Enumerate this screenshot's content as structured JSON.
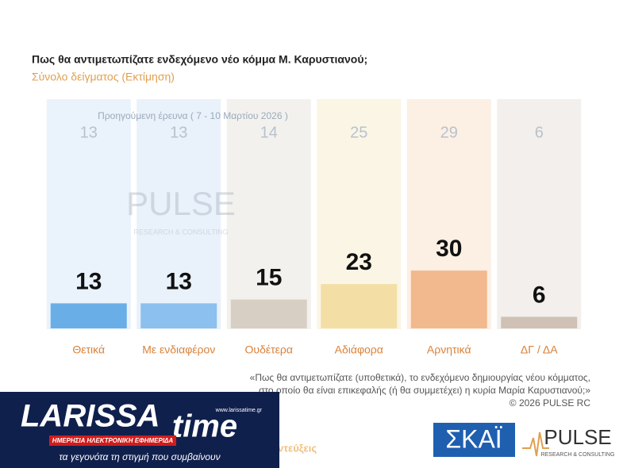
{
  "chart_data": {
    "type": "bar",
    "title": "Πως θα αντιμετωπίζατε ενδεχόμενο νέο κόμμα Μ. Καρυστιανού;",
    "subtitle": "Σύνολο δείγματος  (Εκτίμηση)",
    "categories": [
      "Θετικά",
      "Με ενδιαφέρον",
      "Ουδέτερα",
      "Αδιάφορα",
      "Αρνητικά",
      "ΔΓ / ΔΑ"
    ],
    "values": [
      13,
      13,
      15,
      23,
      30,
      6
    ],
    "colors": [
      "#6aaee8",
      "#8cc0ee",
      "#d8cfc4",
      "#f3dfa6",
      "#f2b98e",
      "#cfc2b4"
    ],
    "column_colors": [
      "#eaf2fb",
      "#e9f1fa",
      "#f3f1ee",
      "#fbf5e6",
      "#fcefe4",
      "#f2efec"
    ],
    "previous_label": "Προηγούμενη έρευνα ( 7 - 10 Μαρτίου 2026 )",
    "previous_values": [
      13,
      13,
      14,
      25,
      29,
      6
    ],
    "footnote": [
      "«Πως θα αντιμετωπίζατε (υποθετικά), το ενδεχόμενο δημιουργίας νέου κόμματος,",
      "στο οποίο θα είναι επικεφαλής (ή θα συμμετέχει) η κυρία Μαρία Καρυστιανού;»",
      "©  2026  PULSE RC"
    ]
  },
  "logos": {
    "pulse": "PULSE",
    "pulse_sub": "RESEARCH & CONSULTING",
    "skai": "ΣΚΑΪ",
    "larissa": "LARISSA",
    "time": "time",
    "larissa_url": "www.larissatime.gr",
    "larissa_sub": "ΗΜΕΡΗΣΙΑ ΗΛΕΚΤΡΟΝΙΚΗ ΕΦΗΜΕΡΙΔΑ",
    "larissa_slogan": "τα γεγονότα τη στιγμή που συμβαίνουν",
    "partial_text": "ντεύξεις"
  }
}
